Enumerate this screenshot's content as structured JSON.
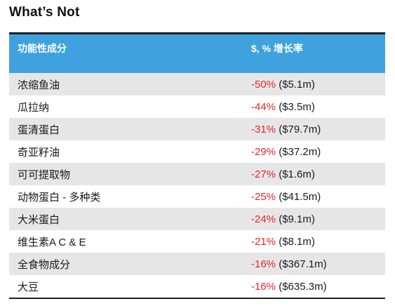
{
  "title": "What’s Not",
  "table": {
    "headers": [
      "功能性成分",
      "$, % 增长率"
    ],
    "rows": [
      {
        "ingredient": "浓缩鱼油",
        "pct": "-50%",
        "amount": "($5.1m)"
      },
      {
        "ingredient": "瓜拉纳",
        "pct": "-44%",
        "amount": "($3.5m)"
      },
      {
        "ingredient": "蛋清蛋白",
        "pct": "-31%",
        "amount": "($79.7m)"
      },
      {
        "ingredient": "奇亚籽油",
        "pct": "-29%",
        "amount": "($37.2m)"
      },
      {
        "ingredient": "可可提取物",
        "pct": "-27%",
        "amount": "($1.6m)"
      },
      {
        "ingredient": "动物蛋白 - 多种类",
        "pct": "-25%",
        "amount": "($41.5m)"
      },
      {
        "ingredient": "大米蛋白",
        "pct": "-24%",
        "amount": "($9.1m)"
      },
      {
        "ingredient": "维生素A C & E",
        "pct": "-21%",
        "amount": "($8.1m)"
      },
      {
        "ingredient": "全食物成分",
        "pct": "-16%",
        "amount": "($367.1m)"
      },
      {
        "ingredient": "大豆",
        "pct": "-16%",
        "amount": "($635.3m)"
      }
    ]
  },
  "colors": {
    "header_bg": "#3fa2de",
    "row_shade": "#e6e6e6",
    "negative": "#e8262b"
  }
}
